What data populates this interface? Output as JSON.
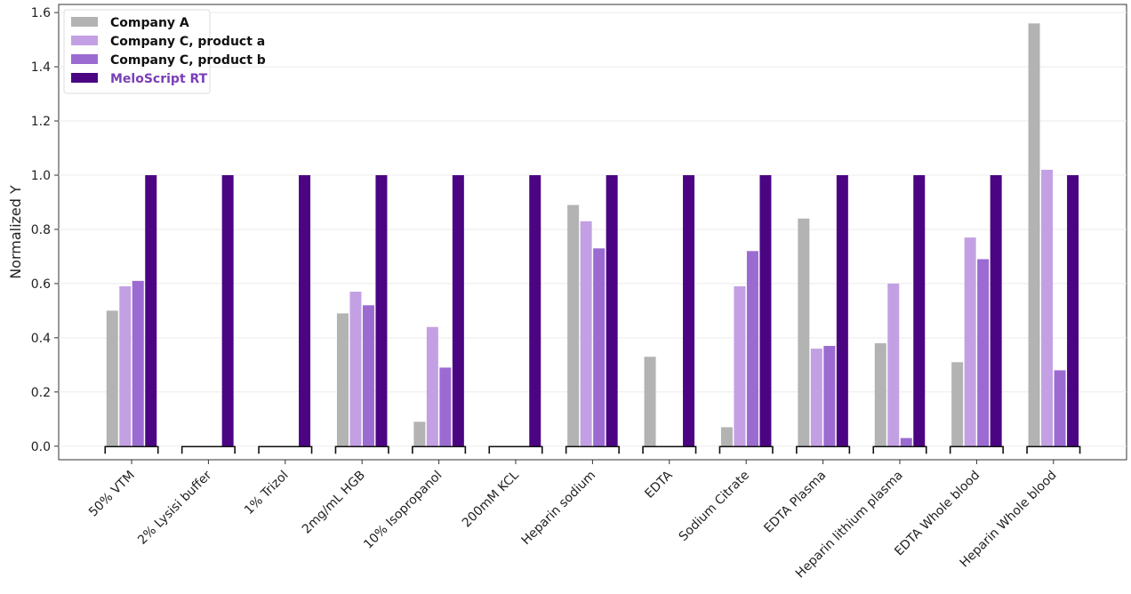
{
  "chart_data": {
    "type": "bar",
    "ylabel": "Normalized Y",
    "xlabel": "",
    "ylim": [
      -0.05,
      1.63
    ],
    "yticks": [
      "0.0",
      "0.2",
      "0.4",
      "0.6",
      "0.8",
      "1.0",
      "1.2",
      "1.4",
      "1.6"
    ],
    "grid": true,
    "legend_position": "top-left",
    "categories": [
      "50% VTM",
      "2% Lysisi buffer",
      "1% Trizol",
      "2mg/mL HGB",
      "10% Isopropanol",
      "200mM KCL",
      "Heparin sodium",
      "EDTA",
      "Sodium Citrate",
      "EDTA Plasma",
      "Heparin lithium plasma",
      "EDTA Whole blood",
      "Heparin Whole blood"
    ],
    "series": [
      {
        "name": "Company A",
        "color": "#b3b3b3",
        "label_color": "#111111",
        "values": [
          0.5,
          0.0,
          0.0,
          0.49,
          0.09,
          0.0,
          0.89,
          0.33,
          0.07,
          0.84,
          0.38,
          0.31,
          1.56
        ]
      },
      {
        "name": "Company C, product a",
        "color": "#c3a0e3",
        "label_color": "#111111",
        "values": [
          0.59,
          0.0,
          0.0,
          0.57,
          0.44,
          0.0,
          0.83,
          0.0,
          0.59,
          0.36,
          0.6,
          0.77,
          1.02
        ]
      },
      {
        "name": "Company C, product b",
        "color": "#9b6bd2",
        "label_color": "#111111",
        "values": [
          0.61,
          0.0,
          0.0,
          0.52,
          0.29,
          0.0,
          0.73,
          0.0,
          0.72,
          0.37,
          0.03,
          0.69,
          0.28
        ]
      },
      {
        "name": "MeloScript RT",
        "color": "#4b0583",
        "label_color": "#7a3fb8",
        "values": [
          1.0,
          1.0,
          1.0,
          1.0,
          1.0,
          1.0,
          1.0,
          1.0,
          1.0,
          1.0,
          1.0,
          1.0,
          1.0
        ]
      }
    ]
  }
}
